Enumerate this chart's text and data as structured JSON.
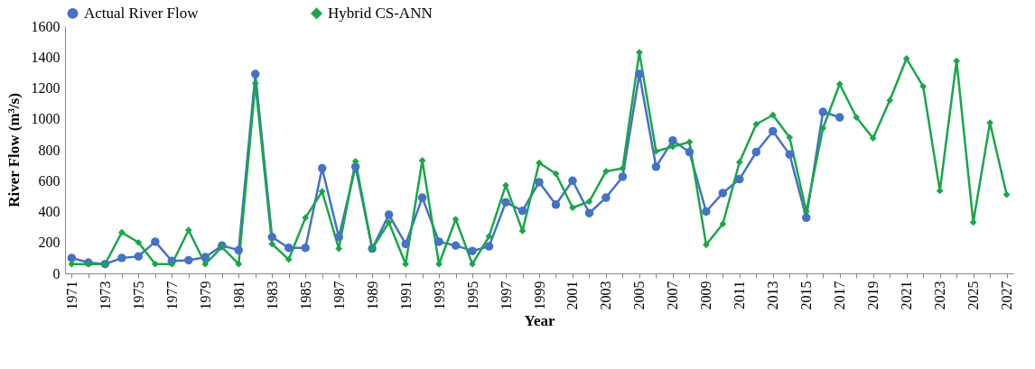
{
  "chart_data": {
    "type": "line",
    "xlabel": "Year",
    "ylabel": "River Flow (m³/s)",
    "categories": [
      "1971",
      null,
      "1973",
      null,
      "1975",
      null,
      "1977",
      null,
      "1979",
      null,
      "1981",
      null,
      "1983",
      null,
      "1985",
      null,
      "1987",
      null,
      "1989",
      null,
      "1991",
      null,
      "1993",
      null,
      "1995",
      null,
      "1997",
      null,
      "1999",
      null,
      "2001",
      null,
      "2003",
      null,
      "2005",
      null,
      "2007",
      null,
      "2009",
      null,
      "2011",
      null,
      "2013",
      null,
      "2015",
      null,
      "2017",
      null,
      "2019",
      null,
      "2021",
      null,
      "2023",
      null,
      "2025",
      null,
      "2027"
    ],
    "series": [
      {
        "name": "Actual River Flow",
        "color": "#4472c4",
        "marker": "circle",
        "values": [
          100,
          70,
          60,
          100,
          110,
          205,
          80,
          85,
          105,
          180,
          150,
          1290,
          235,
          165,
          165,
          680,
          235,
          690,
          160,
          380,
          190,
          490,
          205,
          180,
          145,
          175,
          460,
          405,
          590,
          445,
          600,
          390,
          490,
          625,
          1290,
          690,
          860,
          785,
          400,
          520,
          610,
          785,
          920,
          770,
          360,
          1045,
          1010,
          null,
          null,
          null,
          null,
          null,
          null,
          null,
          null,
          null,
          null
        ]
      },
      {
        "name": "Hybrid CS-ANN",
        "color": "#1aa64a",
        "marker": "diamond",
        "values": [
          60,
          60,
          60,
          265,
          200,
          60,
          60,
          280,
          60,
          170,
          60,
          1230,
          190,
          90,
          360,
          530,
          160,
          725,
          160,
          330,
          60,
          730,
          60,
          350,
          60,
          240,
          570,
          275,
          715,
          645,
          425,
          465,
          660,
          680,
          1430,
          790,
          820,
          850,
          185,
          320,
          720,
          965,
          1025,
          880,
          400,
          940,
          1225,
          1010,
          875,
          1120,
          1390,
          1210,
          535,
          1375,
          330,
          975,
          510
        ]
      }
    ],
    "ylim": [
      0,
      1600
    ],
    "yticks": [
      0,
      200,
      400,
      600,
      800,
      1000,
      1200,
      1400,
      1600
    ],
    "legend": "top"
  }
}
